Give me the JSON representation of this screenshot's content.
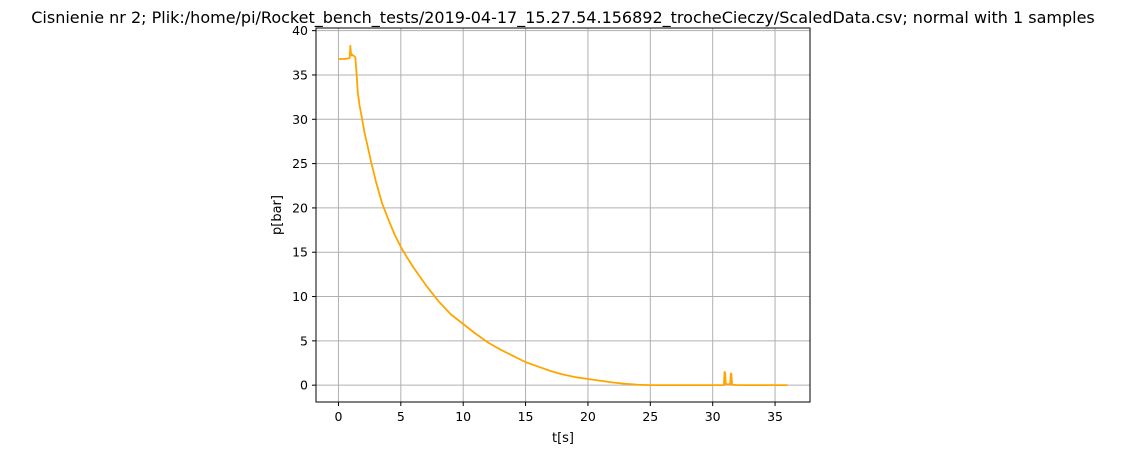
{
  "chart_data": {
    "type": "line",
    "title": "Cisnienie nr 2; Plik:/home/pi/Rocket_bench_tests/2019-04-17_15.27.54.156892_trocheCieczy/ScaledData.csv; normal with 1 samples",
    "xlabel": "t[s]",
    "ylabel": "p[bar]",
    "xlim": [
      -1.8,
      37.8
    ],
    "ylim": [
      -1.9,
      40.3
    ],
    "xticks": [
      0,
      5,
      10,
      15,
      20,
      25,
      30,
      35
    ],
    "yticks": [
      0,
      5,
      10,
      15,
      20,
      25,
      30,
      35,
      40
    ],
    "grid": true,
    "legend": "none",
    "series": [
      {
        "color": "#ffa500",
        "x": [
          0.0,
          0.5,
          0.9,
          0.95,
          1.0,
          1.05,
          1.1,
          1.15,
          1.2,
          1.35,
          1.45,
          1.55,
          1.7,
          1.9,
          2.1,
          2.3,
          2.6,
          3.0,
          3.5,
          4.0,
          4.5,
          5.0,
          5.5,
          6.0,
          7.0,
          8.0,
          9.0,
          10.0,
          11.0,
          12.0,
          13.0,
          14.0,
          15.0,
          16.0,
          17.0,
          18.0,
          19.0,
          20.0,
          21.0,
          22.0,
          23.0,
          24.0,
          25.0,
          26.0,
          28.0,
          30.0,
          30.9,
          30.95,
          31.0,
          31.05,
          31.4,
          31.45,
          31.5,
          31.55,
          32.0,
          34.0,
          36.0
        ],
        "y": [
          36.8,
          36.8,
          36.9,
          38.3,
          37.5,
          37.2,
          37.3,
          37.2,
          37.2,
          37.0,
          35.2,
          33.0,
          31.5,
          30.0,
          28.4,
          27.2,
          25.3,
          23.0,
          20.5,
          18.7,
          17.0,
          15.6,
          14.4,
          13.3,
          11.3,
          9.5,
          8.0,
          6.9,
          5.8,
          4.8,
          4.0,
          3.3,
          2.6,
          2.1,
          1.6,
          1.2,
          0.9,
          0.7,
          0.5,
          0.3,
          0.15,
          0.05,
          0.0,
          0.0,
          0.0,
          0.0,
          0.0,
          1.5,
          1.4,
          0.1,
          0.1,
          1.3,
          1.3,
          0.05,
          0.0,
          0.0,
          0.0
        ]
      }
    ]
  }
}
